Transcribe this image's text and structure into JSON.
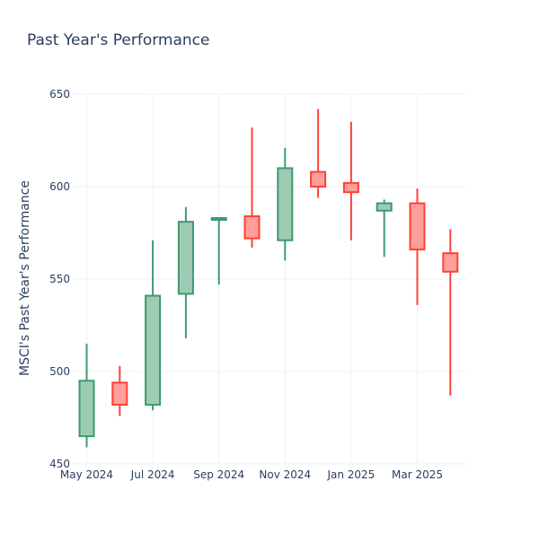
{
  "chart_data": {
    "type": "candlestick",
    "title": "Past Year's Performance",
    "xlabel": "",
    "ylabel": "MSCI's Past Year's Performance",
    "ylim": [
      450,
      650
    ],
    "yticks": [
      450,
      500,
      550,
      600,
      650
    ],
    "xticks": [
      "May 2024",
      "Jul 2024",
      "Sep 2024",
      "Nov 2024",
      "Jan 2025",
      "Mar 2025"
    ],
    "xtick_positions": [
      0,
      2,
      4,
      6,
      8,
      10
    ],
    "grid": true,
    "colors": {
      "increasing_line": "#3d9970",
      "increasing_fill": "#9ecbb3",
      "decreasing_line": "#ff4136",
      "decreasing_fill": "#ff9e9a",
      "grid": "#eef0f4",
      "text": "#2a3f5f"
    },
    "candles": [
      {
        "label": "May 2024",
        "open": 465,
        "high": 515,
        "low": 459,
        "close": 495
      },
      {
        "label": "Jun 2024",
        "open": 494,
        "high": 503,
        "low": 476,
        "close": 482
      },
      {
        "label": "Jul 2024",
        "open": 482,
        "high": 571,
        "low": 479,
        "close": 541
      },
      {
        "label": "Aug 2024",
        "open": 542,
        "high": 589,
        "low": 518,
        "close": 581
      },
      {
        "label": "Sep 2024",
        "open": 582,
        "high": 583,
        "low": 547,
        "close": 583
      },
      {
        "label": "Oct 2024",
        "open": 584,
        "high": 632,
        "low": 567,
        "close": 572
      },
      {
        "label": "Nov 2024",
        "open": 571,
        "high": 621,
        "low": 560,
        "close": 610
      },
      {
        "label": "Dec 2024",
        "open": 608,
        "high": 642,
        "low": 594,
        "close": 600
      },
      {
        "label": "Jan 2025",
        "open": 602,
        "high": 635,
        "low": 571,
        "close": 597
      },
      {
        "label": "Feb 2025",
        "open": 587,
        "high": 593,
        "low": 562,
        "close": 591
      },
      {
        "label": "Mar 2025",
        "open": 591,
        "high": 599,
        "low": 536,
        "close": 566
      },
      {
        "label": "Apr 2025",
        "open": 564,
        "high": 577,
        "low": 487,
        "close": 554
      }
    ]
  }
}
